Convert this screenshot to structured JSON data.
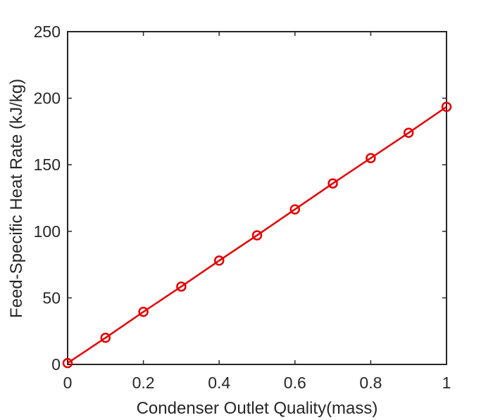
{
  "chart_data": {
    "type": "line",
    "title": "",
    "xlabel": "Condenser Outlet Quality(mass)",
    "ylabel": "Feed-Specific Heat Rate (kJ/kg)",
    "xlim": [
      0,
      1
    ],
    "ylim": [
      0,
      250
    ],
    "xticks": [
      0,
      0.2,
      0.4,
      0.6,
      0.8,
      1
    ],
    "xtick_labels": [
      "0",
      "0.2",
      "0.4",
      "0.6",
      "0.8",
      "1"
    ],
    "yticks": [
      0,
      50,
      100,
      150,
      200,
      250
    ],
    "ytick_labels": [
      "0",
      "50",
      "100",
      "150",
      "200",
      "250"
    ],
    "grid": false,
    "box": true,
    "series": [
      {
        "color": "#e60000",
        "marker": "circle",
        "x": [
          0,
          0.1,
          0.2,
          0.3,
          0.4,
          0.5,
          0.6,
          0.7,
          0.8,
          0.9,
          1.0
        ],
        "y": [
          1,
          20,
          39.5,
          58.5,
          78,
          97,
          116.5,
          136,
          155,
          174,
          193.5
        ]
      }
    ]
  }
}
